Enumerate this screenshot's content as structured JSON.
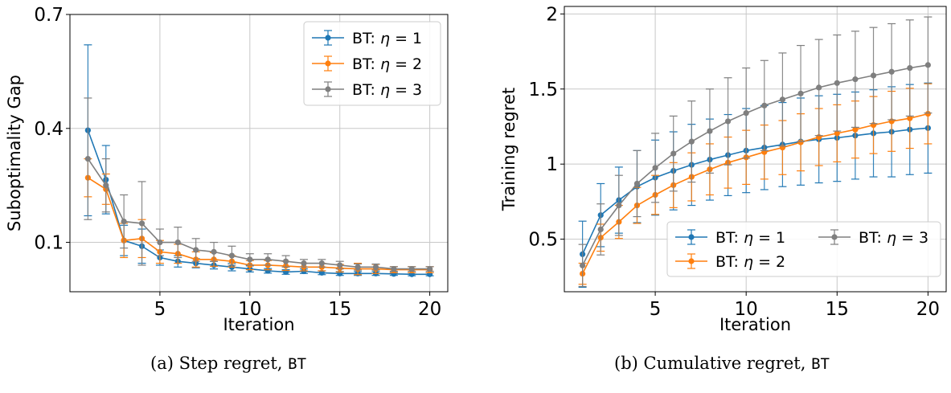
{
  "captions": {
    "a": {
      "text": "(a) Step regret, ",
      "mono": "BT"
    },
    "b": {
      "text": "(b) Cumulative regret, ",
      "mono": "BT"
    }
  },
  "chart_data": [
    {
      "type": "line",
      "title": "",
      "xlabel": "Iteration",
      "ylabel": "Suboptimality Gap",
      "xlim": [
        0.0,
        21.0
      ],
      "ylim": [
        -0.03,
        0.7
      ],
      "xticks": [
        5,
        10,
        15,
        20
      ],
      "yticks": [
        0.1,
        0.4,
        0.7
      ],
      "ytick_labels": [
        "0.1",
        "0.4",
        "0.7"
      ],
      "grid": true,
      "legend": {
        "position": "top-right",
        "columns": 1
      },
      "x": [
        1,
        2,
        3,
        4,
        5,
        6,
        7,
        8,
        9,
        10,
        11,
        12,
        13,
        14,
        15,
        16,
        17,
        18,
        19,
        20
      ],
      "series": [
        {
          "name": "BT: η = 1",
          "color": "#1f77b4",
          "values": [
            0.395,
            0.265,
            0.105,
            0.09,
            0.06,
            0.05,
            0.045,
            0.04,
            0.035,
            0.03,
            0.025,
            0.022,
            0.024,
            0.02,
            0.018,
            0.018,
            0.018,
            0.017,
            0.016,
            0.016
          ],
          "err": [
            0.225,
            0.09,
            0.04,
            0.045,
            0.02,
            0.015,
            0.012,
            0.01,
            0.01,
            0.008,
            0.006,
            0.006,
            0.006,
            0.005,
            0.005,
            0.005,
            0.005,
            0.004,
            0.004,
            0.004
          ]
        },
        {
          "name": "BT: η = 2",
          "color": "#ff7f0e",
          "values": [
            0.27,
            0.24,
            0.105,
            0.11,
            0.075,
            0.07,
            0.055,
            0.055,
            0.05,
            0.04,
            0.04,
            0.038,
            0.035,
            0.035,
            0.032,
            0.03,
            0.03,
            0.028,
            0.028,
            0.028
          ],
          "err": [
            0.05,
            0.04,
            0.045,
            0.05,
            0.03,
            0.025,
            0.02,
            0.018,
            0.015,
            0.012,
            0.012,
            0.012,
            0.01,
            0.01,
            0.01,
            0.015,
            0.012,
            0.008,
            0.008,
            0.008
          ]
        },
        {
          "name": "BT: η = 3",
          "color": "#7f7f7f",
          "values": [
            0.32,
            0.25,
            0.155,
            0.15,
            0.1,
            0.1,
            0.08,
            0.075,
            0.065,
            0.055,
            0.055,
            0.05,
            0.045,
            0.045,
            0.04,
            0.035,
            0.035,
            0.03,
            0.03,
            0.03
          ],
          "err": [
            0.16,
            0.07,
            0.07,
            0.11,
            0.035,
            0.04,
            0.03,
            0.025,
            0.025,
            0.015,
            0.015,
            0.015,
            0.01,
            0.01,
            0.01,
            0.008,
            0.008,
            0.006,
            0.006,
            0.006
          ]
        }
      ]
    },
    {
      "type": "line",
      "title": "",
      "xlabel": "Iteration",
      "ylabel": "Training regret",
      "xlim": [
        0.0,
        21.0
      ],
      "ylim": [
        0.15,
        2.05
      ],
      "xticks": [
        5,
        10,
        15,
        20
      ],
      "yticks": [
        0.5,
        1.0,
        1.5,
        2.0
      ],
      "ytick_labels": [
        "0.5",
        "1",
        "1.5",
        "2"
      ],
      "grid": true,
      "legend": {
        "position": "bottom-right",
        "columns": 2
      },
      "x": [
        1,
        2,
        3,
        4,
        5,
        6,
        7,
        8,
        9,
        10,
        11,
        12,
        13,
        14,
        15,
        16,
        17,
        18,
        19,
        20
      ],
      "series": [
        {
          "name": "BT: η = 1",
          "color": "#1f77b4",
          "values": [
            0.4,
            0.66,
            0.76,
            0.85,
            0.91,
            0.955,
            0.995,
            1.03,
            1.06,
            1.09,
            1.11,
            1.13,
            1.15,
            1.165,
            1.175,
            1.19,
            1.205,
            1.215,
            1.23,
            1.24
          ],
          "err": [
            0.22,
            0.21,
            0.22,
            0.24,
            0.25,
            0.26,
            0.27,
            0.27,
            0.27,
            0.28,
            0.28,
            0.28,
            0.29,
            0.29,
            0.29,
            0.29,
            0.29,
            0.3,
            0.3,
            0.3
          ]
        },
        {
          "name": "BT: η = 2",
          "color": "#ff7f0e",
          "values": [
            0.27,
            0.51,
            0.615,
            0.725,
            0.795,
            0.86,
            0.915,
            0.965,
            1.01,
            1.045,
            1.08,
            1.11,
            1.145,
            1.18,
            1.205,
            1.23,
            1.26,
            1.285,
            1.305,
            1.335
          ],
          "err": [
            0.07,
            0.09,
            0.11,
            0.12,
            0.13,
            0.15,
            0.16,
            0.17,
            0.17,
            0.18,
            0.18,
            0.18,
            0.19,
            0.19,
            0.19,
            0.19,
            0.19,
            0.2,
            0.2,
            0.2
          ]
        },
        {
          "name": "BT: η = 3",
          "color": "#7f7f7f",
          "values": [
            0.325,
            0.565,
            0.725,
            0.87,
            0.975,
            1.07,
            1.15,
            1.22,
            1.285,
            1.34,
            1.39,
            1.43,
            1.47,
            1.51,
            1.54,
            1.565,
            1.59,
            1.615,
            1.64,
            1.66
          ],
          "err": [
            0.14,
            0.17,
            0.2,
            0.22,
            0.23,
            0.25,
            0.27,
            0.28,
            0.29,
            0.3,
            0.3,
            0.31,
            0.32,
            0.32,
            0.32,
            0.32,
            0.32,
            0.32,
            0.32,
            0.32
          ]
        }
      ]
    }
  ]
}
